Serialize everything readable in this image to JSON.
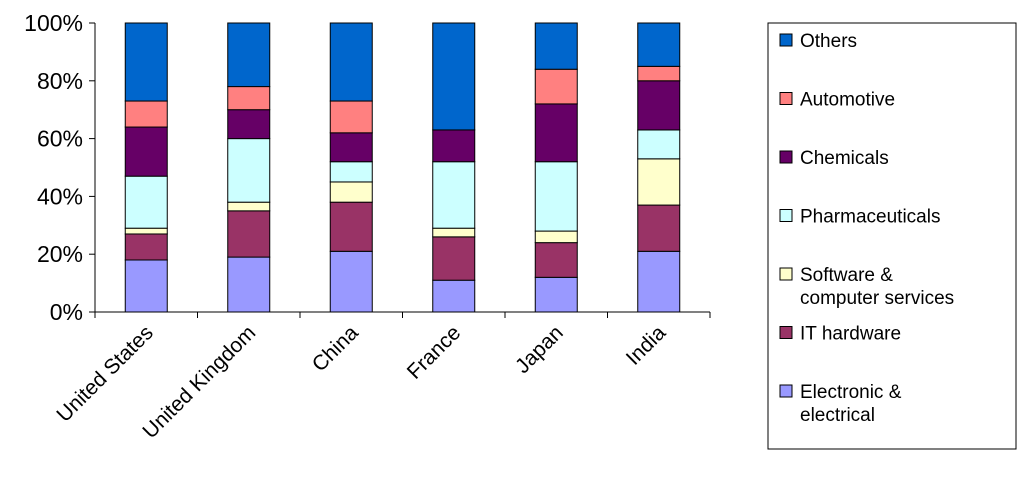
{
  "chart_data": {
    "type": "bar",
    "stacked": true,
    "percent_stacked": true,
    "title": "",
    "xlabel": "",
    "ylabel": "",
    "ylim": [
      0,
      100
    ],
    "yticks": [
      "0%",
      "20%",
      "40%",
      "60%",
      "80%",
      "100%"
    ],
    "grid": false,
    "legend_position": "right",
    "categories": [
      "United States",
      "United Kingdom",
      "China",
      "France",
      "Japan",
      "India"
    ],
    "series": [
      {
        "name": "Electronic & electrical",
        "name_lines": [
          "Electronic &",
          "electrical"
        ],
        "color": "#9999ff",
        "values": [
          18,
          19,
          21,
          11,
          12,
          21
        ]
      },
      {
        "name": "IT hardware",
        "name_lines": [
          "IT hardware"
        ],
        "color": "#993366",
        "values": [
          9,
          16,
          17,
          15,
          12,
          16
        ]
      },
      {
        "name": "Software & computer services",
        "name_lines": [
          "Software &",
          "computer services"
        ],
        "color": "#ffffcc",
        "values": [
          2,
          3,
          7,
          3,
          4,
          16
        ]
      },
      {
        "name": "Pharmaceuticals",
        "name_lines": [
          "Pharmaceuticals"
        ],
        "color": "#ccffff",
        "values": [
          18,
          22,
          7,
          23,
          24,
          10
        ]
      },
      {
        "name": "Chemicals",
        "name_lines": [
          "Chemicals"
        ],
        "color": "#660066",
        "values": [
          17,
          10,
          10,
          11,
          20,
          17
        ]
      },
      {
        "name": "Automotive",
        "name_lines": [
          "Automotive"
        ],
        "color": "#ff8080",
        "values": [
          9,
          8,
          11,
          0,
          12,
          5
        ]
      },
      {
        "name": "Others",
        "name_lines": [
          "Others"
        ],
        "color": "#0066cc",
        "values": [
          27,
          22,
          27,
          37,
          16,
          15
        ]
      }
    ]
  }
}
